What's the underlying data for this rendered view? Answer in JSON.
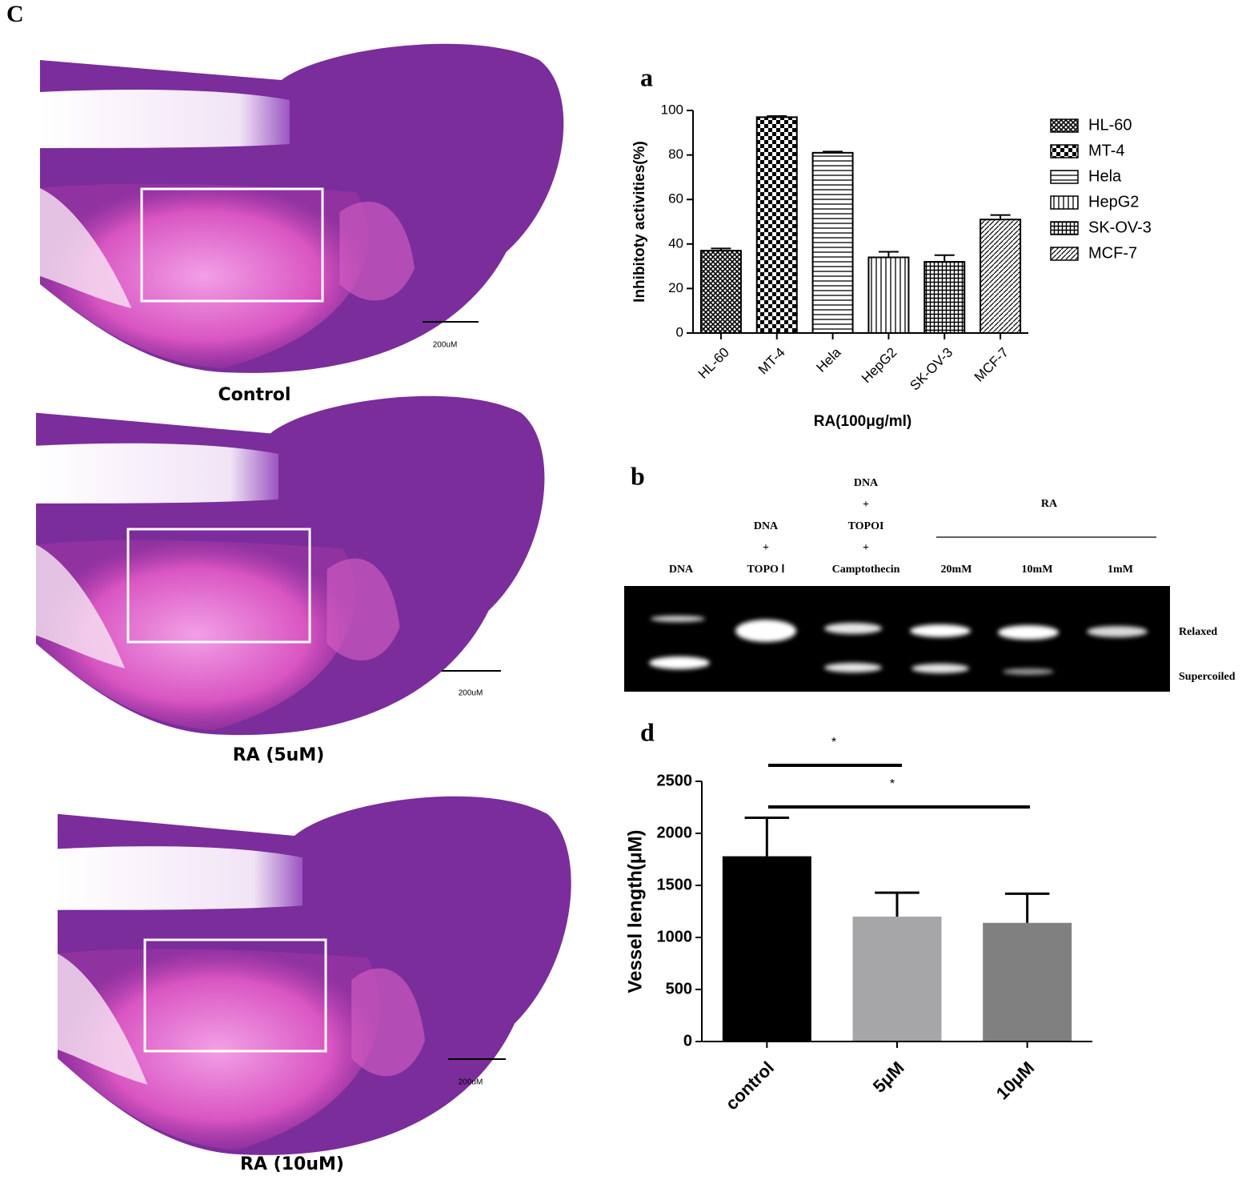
{
  "figure_label": "C",
  "micrographs": [
    {
      "caption": "Control",
      "scale": "200uM"
    },
    {
      "caption": "RA (5uM)",
      "scale": "200uM"
    },
    {
      "caption": "RA (10uM)",
      "scale": "200uM"
    }
  ],
  "gel": {
    "panel_label": "b",
    "lanes": [
      [
        "DNA"
      ],
      [
        "DNA",
        "+",
        "TOPO Ⅰ"
      ],
      [
        "DNA",
        "+",
        "TOPOI",
        "+",
        "Camptothecin"
      ],
      [
        "20mM"
      ],
      [
        "10mM"
      ],
      [
        "1mM"
      ]
    ],
    "group_label": "RA",
    "bands": [
      "Relaxed",
      "Supercoiled"
    ]
  },
  "chart_data": [
    {
      "type": "bar",
      "panel_label": "a",
      "categories": [
        "HL-60",
        "MT-4",
        "Hela",
        "HepG2",
        "SK-OV-3",
        "MCF-7"
      ],
      "values": [
        37,
        97,
        81,
        34,
        32,
        51
      ],
      "errors": [
        1,
        0.5,
        0.5,
        2.5,
        3,
        2
      ],
      "patterns": [
        "fine",
        "checker",
        "horizontal",
        "vertical",
        "grid",
        "diagonal"
      ],
      "x_label": "RA(100μg/ml)",
      "y_label": "Inhibitoty activities(%)",
      "ylim": [
        0,
        100
      ],
      "yticks": [
        0,
        20,
        40,
        60,
        80,
        100
      ],
      "legend": "right"
    },
    {
      "type": "bar",
      "panel_label": "d",
      "categories": [
        "control",
        "5μM",
        "10μM"
      ],
      "values": [
        1780,
        1200,
        1140
      ],
      "errors": [
        370,
        230,
        280
      ],
      "colors": [
        "#000000",
        "#a6a6a8",
        "#808080"
      ],
      "y_label": "Vessel length(μM)",
      "ylim": [
        0,
        2500
      ],
      "yticks": [
        0,
        500,
        1000,
        1500,
        2000,
        2500
      ],
      "annotations": [
        "*",
        "*"
      ]
    }
  ]
}
